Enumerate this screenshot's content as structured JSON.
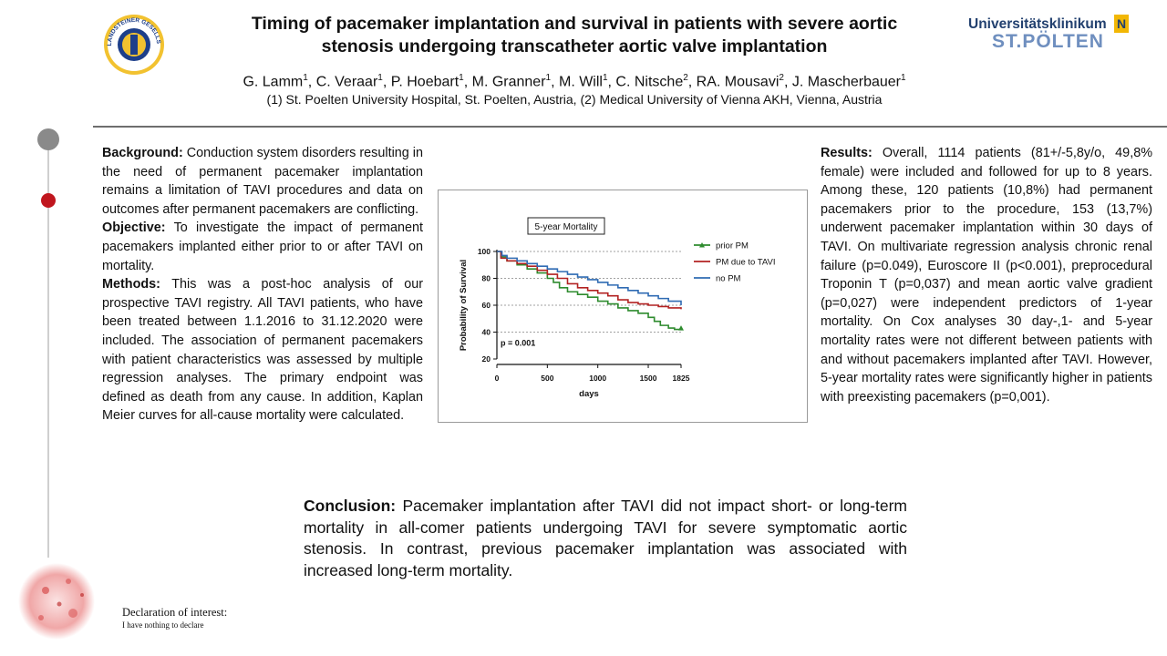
{
  "header": {
    "title_line1": "Timing of pacemaker implantation and survival in patients with severe aortic",
    "title_line2": "stenosis undergoing transcatheter aortic valve implantation",
    "authors": [
      {
        "name": "G. Lamm",
        "sup": "1",
        "sep": ", "
      },
      {
        "name": "C. Veraar",
        "sup": "1",
        "sep": ", "
      },
      {
        "name": "P. Hoebart",
        "sup": "1",
        "sep": ", "
      },
      {
        "name": "M. Granner",
        "sup": "1",
        "sep": ", "
      },
      {
        "name": "M. Will",
        "sup": "1",
        "sep": ", "
      },
      {
        "name": "C. Nitsche",
        "sup": "2",
        "sep": ", "
      },
      {
        "name": "RA. Mousavi",
        "sup": "2",
        "sep": ", "
      },
      {
        "name": "J. Mascherbauer",
        "sup": "1",
        "sep": ""
      }
    ],
    "affiliations": "(1) St. Poelten University Hospital, St. Poelten, Austria, (2) Medical University of Vienna AKH, Vienna, Austria",
    "logo_left_text": "KARL LANDSTEINER GESELLSCHAFT",
    "logo_right_line1": "Universitätsklinikum",
    "logo_right_line2": "ST.PÖLTEN",
    "logo_right_badge": "N"
  },
  "left_column": {
    "background_label": "Background:",
    "background_text": " Conduction system disorders resulting in the need of permanent pacemaker implantation remains a limitation of TAVI procedures and data on outcomes after permanent pacemakers are conflicting.",
    "objective_label": "Objective:",
    "objective_text": " To investigate the impact of permanent pacemakers implanted either prior to or after TAVI on mortality.",
    "methods_label": "Methods:",
    "methods_text": " This was a post-hoc analysis of our prospective TAVI registry. All TAVI patients, who have been treated between 1.1.2016 to 31.12.2020 were included. The association of permanent pacemakers with patient characteristics was assessed by multiple regression analyses. The primary endpoint was defined as death from any cause. In addition, Kaplan Meier curves for all-cause mortality were calculated."
  },
  "right_column": {
    "results_label": "Results:",
    "results_text": " Overall, 1114 patients (81+/-5,8y/o, 49,8% female) were included and followed for up to 8 years. Among these, 120 patients (10,8%) had permanent pacemakers prior to the procedure, 153 (13,7%) underwent pacemaker implantation within 30 days of TAVI. On multivariate regression analysis chronic renal failure (p=0.049), Euroscore II (p<0.001), preprocedural Troponin T (p=0,037) and mean aortic valve gradient (p=0,027) were independent predictors of 1-year mortality. On Cox analyses 30 day-,1- and 5-year mortality rates were not different between patients with and without pacemakers implanted after TAVI. However, 5-year mortality rates were significantly higher in patients with preexisting pacemakers (p=0,001)."
  },
  "conclusion": {
    "label": "Conclusion:",
    "text": " Pacemaker implantation after TAVI did not impact short- or long-term mortality in all-comer patients undergoing TAVI for severe symptomatic aortic stenosis. In contrast, previous pacemaker implantation was associated with increased long-term mortality."
  },
  "declaration": {
    "heading": "Declaration of interest:",
    "text": "I have nothing to declare"
  },
  "chart_data": {
    "type": "line",
    "title": "5-year Mortality",
    "xlabel": "days",
    "ylabel": "Probability of Survival",
    "annotation": "p = 0.001",
    "xlim": [
      0,
      1825
    ],
    "ylim": [
      20,
      100
    ],
    "xticks": [
      0,
      500,
      1000,
      1500,
      1825
    ],
    "yticks": [
      20,
      40,
      60,
      80,
      100
    ],
    "grid": "dashed-horizontal",
    "legend_position": "right",
    "series": [
      {
        "name": "prior PM",
        "color": "#2e8b2e",
        "marker": "triangle",
        "x": [
          0,
          40,
          100,
          200,
          300,
          400,
          500,
          560,
          620,
          700,
          800,
          900,
          1000,
          1100,
          1200,
          1300,
          1400,
          1500,
          1560,
          1620,
          1700,
          1760,
          1825
        ],
        "y": [
          100,
          96,
          93,
          90,
          87,
          84,
          80,
          77,
          73,
          70,
          68,
          66,
          63,
          61,
          58,
          56,
          54,
          51,
          48,
          45,
          43,
          42,
          43
        ]
      },
      {
        "name": "PM due to TAVI",
        "color": "#b22222",
        "marker": "none",
        "x": [
          0,
          40,
          100,
          200,
          300,
          400,
          500,
          600,
          700,
          800,
          900,
          1000,
          1100,
          1200,
          1300,
          1400,
          1500,
          1600,
          1700,
          1825
        ],
        "y": [
          100,
          95,
          93,
          91,
          89,
          86,
          83,
          80,
          76,
          73,
          71,
          69,
          67,
          64,
          62,
          61,
          60,
          59,
          58,
          57
        ]
      },
      {
        "name": "no PM",
        "color": "#2f6bb3",
        "marker": "none",
        "x": [
          0,
          50,
          100,
          200,
          300,
          400,
          500,
          600,
          700,
          800,
          900,
          1000,
          1100,
          1200,
          1300,
          1400,
          1500,
          1600,
          1700,
          1825
        ],
        "y": [
          100,
          97,
          95,
          93,
          91,
          89,
          87,
          85,
          83,
          81,
          79,
          77,
          75,
          73,
          71,
          69,
          67,
          65,
          63,
          60
        ]
      }
    ]
  },
  "colors": {
    "accent_red": "#c0161e",
    "gray_dot": "#8a8a8a",
    "rule": "#6e6e6e"
  }
}
